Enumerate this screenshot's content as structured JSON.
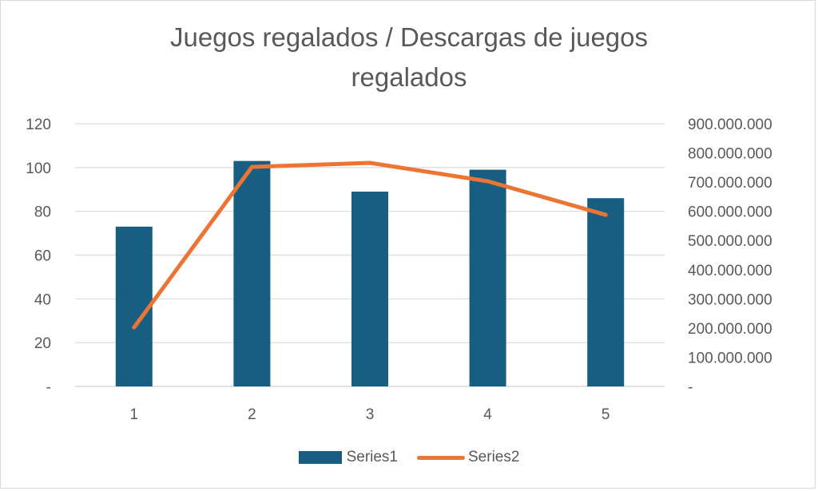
{
  "chart_data": {
    "type": "bar",
    "combo": "bar + line (secondary axis)",
    "title": "Juegos regalados / Descargas de juegos regalados",
    "title_lines": [
      "Juegos regalados / Descargas de juegos",
      "regalados"
    ],
    "categories": [
      "1",
      "2",
      "3",
      "4",
      "5"
    ],
    "series": [
      {
        "name": "Series1",
        "type": "bar",
        "axis": "primary",
        "color": "#175E82",
        "values": [
          73,
          103,
          89,
          99,
          86
        ]
      },
      {
        "name": "Series2",
        "type": "line",
        "axis": "secondary",
        "color": "#ED7533",
        "values": [
          202000000,
          752000000,
          766000000,
          703000000,
          588000000
        ]
      }
    ],
    "xlabel": "",
    "ylabel": "",
    "y_primary": {
      "ylim": [
        0,
        120
      ],
      "ticks": [
        0,
        20,
        40,
        60,
        80,
        100,
        120
      ],
      "tick_labels": [
        "-",
        "20",
        "40",
        "60",
        "80",
        "100",
        "120"
      ]
    },
    "y_secondary": {
      "ylim": [
        0,
        900000000
      ],
      "ticks": [
        0,
        100000000,
        200000000,
        300000000,
        400000000,
        500000000,
        600000000,
        700000000,
        800000000,
        900000000
      ],
      "tick_labels": [
        "-",
        "100.000.000",
        "200.000.000",
        "300.000.000",
        "400.000.000",
        "500.000.000",
        "600.000.000",
        "700.000.000",
        "800.000.000",
        "900.000.000"
      ]
    },
    "grid": true,
    "legend_position": "bottom",
    "legend": [
      "Series1",
      "Series2"
    ]
  },
  "colors": {
    "bar": "#175E82",
    "line": "#ED7533",
    "grid": "#d9d9d9",
    "text": "#595959"
  }
}
